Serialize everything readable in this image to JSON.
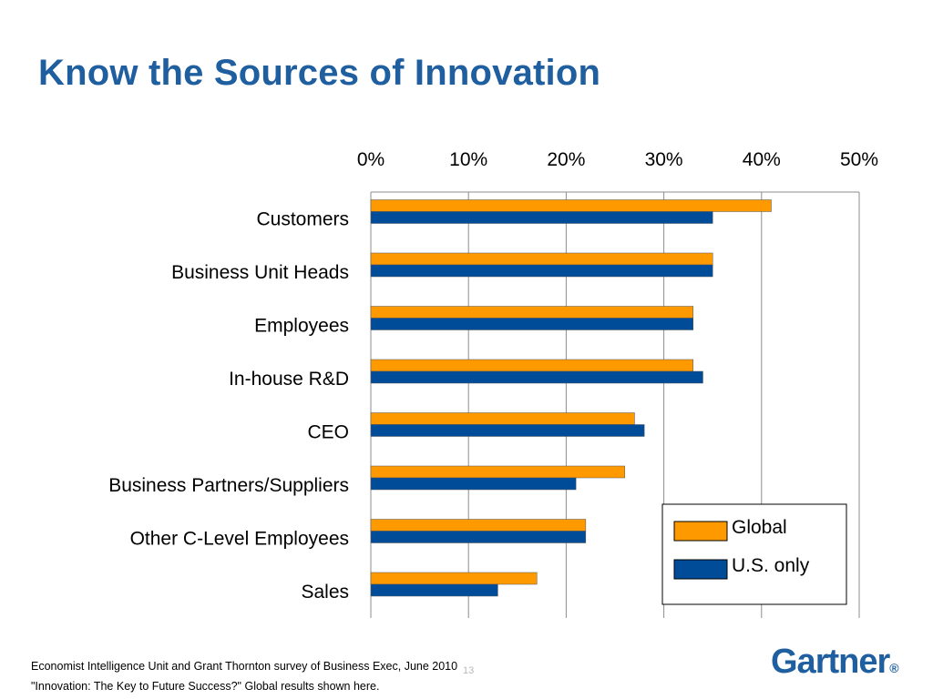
{
  "slide": {
    "title": "Know the Sources of Innovation",
    "footnote_line1": "Economist Intelligence Unit and Grant Thornton survey of Business Exec, June 2010",
    "footnote_line2": "\"Innovation: The Key to Future Success?\" Global results shown here.",
    "page_number": "13",
    "logo_text": "Gartner",
    "logo_mark": "®"
  },
  "chart_data": {
    "type": "bar",
    "orientation": "horizontal",
    "axis_position": "top",
    "categories": [
      "Customers",
      "Business Unit Heads",
      "Employees",
      "In-house R&D",
      "CEO",
      "Business Partners/Suppliers",
      "Other C-Level Employees",
      "Sales"
    ],
    "series": [
      {
        "name": "Global",
        "color": "#ff9900",
        "values": [
          41,
          35,
          33,
          33,
          27,
          26,
          22,
          17
        ]
      },
      {
        "name": "U.S. only",
        "color": "#004c99",
        "values": [
          35,
          35,
          33,
          34,
          28,
          21,
          22,
          13
        ]
      }
    ],
    "xlim": [
      0,
      50
    ],
    "ticks": [
      "0%",
      "10%",
      "20%",
      "30%",
      "40%",
      "50%"
    ],
    "tick_values": [
      0,
      10,
      20,
      30,
      40,
      50
    ],
    "grid": true,
    "legend_position": "bottom-right",
    "title": "",
    "xlabel": "",
    "ylabel": ""
  }
}
